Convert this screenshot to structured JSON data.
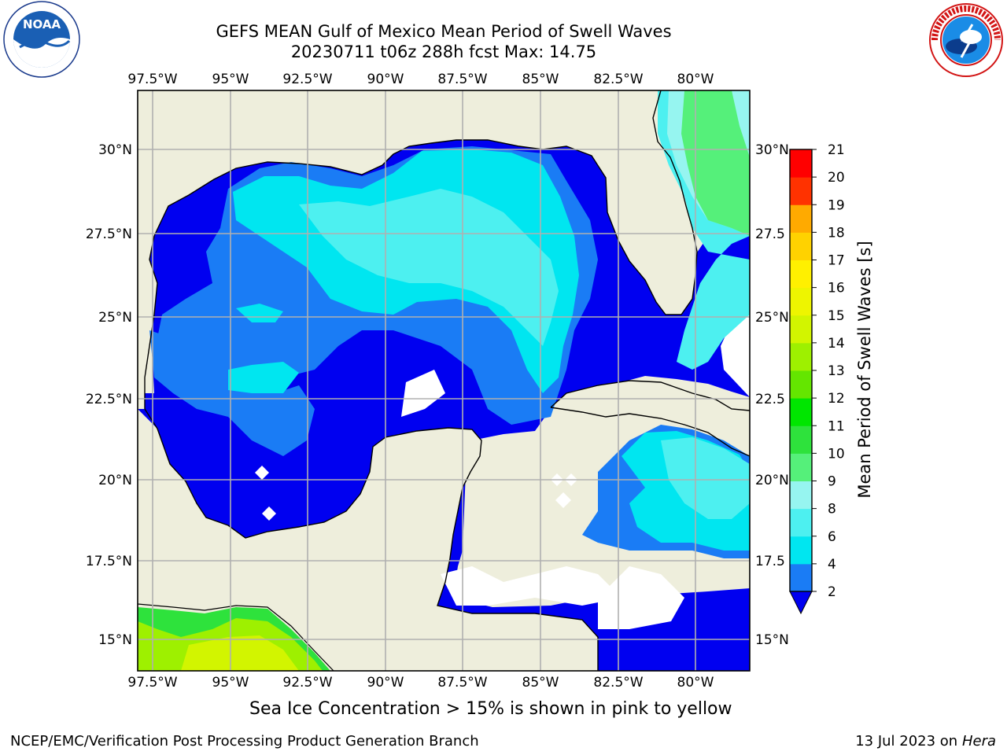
{
  "header": {
    "title_line1": "GEFS MEAN Gulf of Mexico Mean Period of Swell Waves",
    "title_line2": "20230711 t06z 288h fcst   Max: 14.75"
  },
  "logos": {
    "left": "NOAA",
    "left_ring_text": "NATIONAL OCEANIC AND ATMOSPHERIC ADMINISTRATION · U.S. DEPARTMENT OF COMMERCE",
    "right_ring_text": "NATIONAL WEATHER SERVICE"
  },
  "map": {
    "lon_labels": [
      "97.5°W",
      "95°W",
      "92.5°W",
      "90°W",
      "87.5°W",
      "85°W",
      "82.5°W",
      "80°W"
    ],
    "lat_labels": [
      "30°N",
      "27.5°N",
      "25°N",
      "22.5°N",
      "20°N",
      "17.5°N",
      "15°N"
    ],
    "lat_labels_right": [
      "30°N",
      "27.5",
      "25°N",
      "22.5",
      "20°N",
      "17.5",
      "15°N"
    ],
    "land_color": "#eeeedc",
    "grid_color": "#b0b0b0"
  },
  "colorbar": {
    "label": "Mean Period of Swell Waves [s]",
    "ticks": [
      "2",
      "4",
      "6",
      "8",
      "9",
      "10",
      "11",
      "12",
      "13",
      "14",
      "15",
      "16",
      "17",
      "18",
      "19",
      "20",
      "21"
    ],
    "colors": [
      "#0000f0",
      "#1a7cf5",
      "#00e6f0",
      "#4df0f0",
      "#96f5f0",
      "#55f07a",
      "#2ee23c",
      "#00e600",
      "#64e600",
      "#9ef000",
      "#d2f500",
      "#eef500",
      "#fff000",
      "#ffd200",
      "#ffaa00",
      "#ff8200",
      "#ff5a00",
      "#ff3200",
      "#ff0000"
    ]
  },
  "footer": {
    "note": "Sea Ice Concentration > 15% is shown in pink to yellow",
    "branch": "NCEP/EMC/Verification Post Processing Product Generation Branch",
    "date": "13 Jul 2023 on",
    "host": "Hera"
  }
}
